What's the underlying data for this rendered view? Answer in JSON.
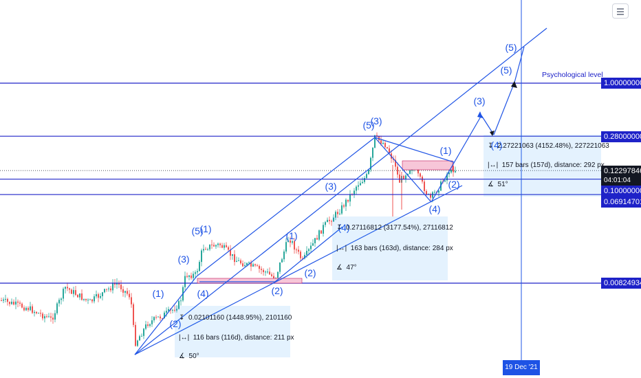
{
  "chart_data": {
    "type": "line",
    "scale": "log",
    "grid": false,
    "colors": {
      "levels": "#1e22c8",
      "wave": "#1e53e5",
      "candle_up": "#26a69a",
      "candle_down": "#ef5350",
      "zone": "#f7c6d8"
    },
    "price_levels": [
      {
        "value": "1.00000000",
        "label": "Psychological level"
      },
      {
        "value": "0.28000000"
      },
      {
        "value": "0.12297846",
        "countdown": "04:01:04",
        "current": true
      },
      {
        "value": "0.10000000"
      },
      {
        "value": "0.06914701"
      },
      {
        "value": "0.00824934"
      }
    ],
    "date_marker": "19 Dec '21",
    "wave_labels": [
      "(1)",
      "(2)",
      "(3)",
      "(4)",
      "(5)",
      "(1)",
      "(2)",
      "(3)",
      "(4)",
      "(5)",
      "(1)",
      "(2)",
      "(3)",
      "(4)",
      "(5)",
      "(5)"
    ],
    "measurements": [
      {
        "price": "0.02101160 (1448.95%), 2101160",
        "bars": "116 bars (116d), distance: 211 px",
        "angle": "50°"
      },
      {
        "price": "0.27116812 (3177.54%), 27116812",
        "bars": "163 bars (163d), distance: 284 px",
        "angle": "47°"
      },
      {
        "price": "2.27221063 (4152.48%), 227221063",
        "bars": "157 bars (157d), distance: 292 px",
        "angle": "51°"
      }
    ]
  }
}
